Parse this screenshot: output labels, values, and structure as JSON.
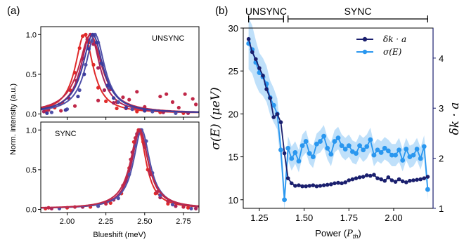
{
  "figure": {
    "left_panel_letter": "(a)",
    "right_panel_letter": "(b)"
  },
  "chart_data": [
    {
      "id": "a-top",
      "type": "scatter",
      "annotation": "UNSYNC",
      "ylabel": "Norm. intensity (a.u.)",
      "xlim": [
        1.83,
        2.85
      ],
      "ylim": [
        -0.04,
        1.1
      ],
      "yticks": [
        "0.0",
        "0.5",
        "1.0"
      ],
      "series": [
        {
          "color": "#e02a2a",
          "center": 2.11,
          "width": 0.07,
          "points": [
            [
              1.86,
              0.04
            ],
            [
              1.92,
              0.08
            ],
            [
              1.97,
              0.14
            ],
            [
              2.02,
              0.3
            ],
            [
              2.05,
              0.52
            ],
            [
              2.08,
              0.83
            ],
            [
              2.1,
              0.98
            ],
            [
              2.12,
              1.0
            ],
            [
              2.14,
              0.9
            ],
            [
              2.17,
              0.62
            ],
            [
              2.2,
              0.33
            ],
            [
              2.25,
              0.16
            ],
            [
              2.32,
              0.07
            ],
            [
              2.45,
              0.03
            ],
            [
              2.6,
              0.02
            ],
            [
              2.75,
              0.01
            ]
          ]
        },
        {
          "color": "#a8245a",
          "center": 2.15,
          "width": 0.075,
          "points": [
            [
              1.85,
              0.03
            ],
            [
              1.95,
              0.12
            ],
            [
              2.01,
              0.2
            ],
            [
              2.06,
              0.42
            ],
            [
              2.1,
              0.7
            ],
            [
              2.13,
              0.94
            ],
            [
              2.15,
              1.0
            ],
            [
              2.17,
              0.88
            ],
            [
              2.2,
              0.58
            ],
            [
              2.24,
              0.3
            ],
            [
              2.3,
              0.14
            ],
            [
              2.38,
              0.07
            ],
            [
              2.5,
              0.04
            ],
            [
              2.62,
              0.02
            ],
            [
              2.78,
              0.01
            ]
          ]
        },
        {
          "color": "#c02848",
          "center": 2.15,
          "width": 0.09,
          "points": [
            [
              1.88,
              0.05
            ],
            [
              1.96,
              0.04
            ],
            [
              2.05,
              0.1
            ],
            [
              2.2,
              0.17
            ],
            [
              2.28,
              0.31
            ],
            [
              2.32,
              0.15
            ],
            [
              2.36,
              0.21
            ],
            [
              2.4,
              0.18
            ],
            [
              2.45,
              0.28
            ],
            [
              2.5,
              0.09
            ],
            [
              2.55,
              0.04
            ],
            [
              2.6,
              0.22
            ],
            [
              2.64,
              0.25
            ],
            [
              2.68,
              0.15
            ],
            [
              2.72,
              0.08
            ],
            [
              2.76,
              0.25
            ],
            [
              2.81,
              0.19
            ],
            [
              2.83,
              0.12
            ]
          ]
        },
        {
          "color": "#5050a8",
          "center": 2.18,
          "width": 0.075,
          "points": [
            [
              1.9,
              0.02
            ],
            [
              2.0,
              0.06
            ],
            [
              2.08,
              0.3
            ],
            [
              2.12,
              0.62
            ],
            [
              2.16,
              0.92
            ],
            [
              2.18,
              1.0
            ],
            [
              2.2,
              0.9
            ],
            [
              2.23,
              0.62
            ],
            [
              2.27,
              0.33
            ],
            [
              2.33,
              0.15
            ],
            [
              2.42,
              0.06
            ],
            [
              2.55,
              0.03
            ],
            [
              2.7,
              0.01
            ]
          ]
        },
        {
          "color": "#3c3c9c",
          "center": 2.165,
          "width": 0.08,
          "points": [
            [
              1.87,
              0.01
            ],
            [
              1.99,
              0.05
            ],
            [
              2.07,
              0.22
            ],
            [
              2.11,
              0.5
            ],
            [
              2.14,
              0.82
            ],
            [
              2.165,
              1.0
            ],
            [
              2.19,
              0.9
            ],
            [
              2.22,
              0.64
            ],
            [
              2.26,
              0.36
            ],
            [
              2.3,
              0.2
            ],
            [
              2.38,
              0.08
            ],
            [
              2.5,
              0.04
            ]
          ]
        }
      ]
    },
    {
      "id": "a-bottom",
      "type": "scatter",
      "annotation": "SYNC",
      "xlabel": "Blueshift (meV)",
      "xlim": [
        1.83,
        2.85
      ],
      "ylim": [
        -0.04,
        1.1
      ],
      "xticks": [
        "2.00",
        "2.25",
        "2.50",
        "2.75"
      ],
      "yticks": [
        "0.0",
        "0.5",
        "1.0"
      ],
      "series": [
        {
          "color": "#e02a2a",
          "center": 2.46,
          "width": 0.06,
          "points": [
            [
              1.86,
              0.01
            ],
            [
              2.0,
              0.02
            ],
            [
              2.15,
              0.03
            ],
            [
              2.28,
              0.08
            ],
            [
              2.35,
              0.2
            ],
            [
              2.4,
              0.52
            ],
            [
              2.43,
              0.85
            ],
            [
              2.46,
              1.0
            ],
            [
              2.49,
              0.85
            ],
            [
              2.52,
              0.5
            ],
            [
              2.57,
              0.2
            ],
            [
              2.65,
              0.07
            ],
            [
              2.78,
              0.02
            ]
          ]
        },
        {
          "color": "#a8245a",
          "center": 2.47,
          "width": 0.065,
          "points": [
            [
              1.9,
              0.01
            ],
            [
              2.1,
              0.03
            ],
            [
              2.3,
              0.12
            ],
            [
              2.38,
              0.36
            ],
            [
              2.42,
              0.72
            ],
            [
              2.45,
              0.95
            ],
            [
              2.47,
              1.0
            ],
            [
              2.5,
              0.82
            ],
            [
              2.54,
              0.44
            ],
            [
              2.6,
              0.15
            ],
            [
              2.7,
              0.04
            ],
            [
              2.83,
              0.01
            ]
          ]
        },
        {
          "color": "#5050a8",
          "center": 2.48,
          "width": 0.065,
          "points": [
            [
              1.95,
              0.01
            ],
            [
              2.2,
              0.04
            ],
            [
              2.33,
              0.14
            ],
            [
              2.4,
              0.44
            ],
            [
              2.44,
              0.8
            ],
            [
              2.48,
              1.0
            ],
            [
              2.51,
              0.86
            ],
            [
              2.55,
              0.46
            ],
            [
              2.6,
              0.18
            ],
            [
              2.68,
              0.06
            ],
            [
              2.8,
              0.01
            ]
          ]
        },
        {
          "color": "#c02848",
          "center": 2.465,
          "width": 0.07,
          "points": [
            [
              1.88,
              0.02
            ],
            [
              2.05,
              0.03
            ],
            [
              2.25,
              0.07
            ],
            [
              2.36,
              0.3
            ],
            [
              2.41,
              0.63
            ],
            [
              2.44,
              0.9
            ],
            [
              2.47,
              0.99
            ],
            [
              2.5,
              0.78
            ],
            [
              2.53,
              0.48
            ],
            [
              2.58,
              0.22
            ],
            [
              2.65,
              0.1
            ],
            [
              2.75,
              0.03
            ]
          ]
        }
      ]
    },
    {
      "id": "b",
      "type": "line",
      "xlabel": "Power (P_th)",
      "ylabel_left": "σ(E)  (μeV)",
      "ylabel_right": "δk · a",
      "xlim": [
        1.16,
        2.22
      ],
      "ylim_left": [
        9,
        30
      ],
      "ylim_right": [
        1,
        4.6
      ],
      "xticks": [
        "1.25",
        "1.50",
        "1.75",
        "2.00"
      ],
      "yticks_left": [
        "10",
        "15",
        "20",
        "25",
        "30"
      ],
      "yticks_right": [
        "1",
        "2",
        "3",
        "4"
      ],
      "regions": [
        {
          "label": "UNSYNC",
          "from": 1.19,
          "to": 1.385
        },
        {
          "label": "SYNC",
          "from": 1.41,
          "to": 2.19
        }
      ],
      "legend": [
        {
          "label": "δk · a",
          "color": "#1a1f6e"
        },
        {
          "label": "σ(E)",
          "color": "#2a97ef"
        }
      ],
      "series": [
        {
          "name": "δk · a",
          "axis": "right",
          "color": "#1a1f6e",
          "x": [
            1.19,
            1.21,
            1.23,
            1.25,
            1.27,
            1.29,
            1.31,
            1.33,
            1.35,
            1.37,
            1.39,
            1.41,
            1.43,
            1.45,
            1.47,
            1.49,
            1.51,
            1.53,
            1.55,
            1.57,
            1.59,
            1.61,
            1.63,
            1.65,
            1.67,
            1.69,
            1.71,
            1.73,
            1.75,
            1.77,
            1.79,
            1.81,
            1.83,
            1.85,
            1.87,
            1.89,
            1.91,
            1.93,
            1.95,
            1.97,
            1.99,
            2.01,
            2.03,
            2.05,
            2.07,
            2.09,
            2.11,
            2.13,
            2.15,
            2.17,
            2.19
          ],
          "y": [
            4.38,
            4.12,
            3.98,
            3.8,
            3.65,
            3.38,
            3.2,
            2.82,
            2.88,
            2.72,
            2.1,
            1.6,
            1.5,
            1.45,
            1.46,
            1.44,
            1.44,
            1.45,
            1.46,
            1.44,
            1.45,
            1.46,
            1.47,
            1.48,
            1.5,
            1.51,
            1.5,
            1.52,
            1.56,
            1.58,
            1.6,
            1.62,
            1.63,
            1.66,
            1.65,
            1.67,
            1.6,
            1.58,
            1.55,
            1.62,
            1.56,
            1.53,
            1.58,
            1.54,
            1.52,
            1.55,
            1.56,
            1.57,
            1.58,
            1.6,
            1.63
          ]
        },
        {
          "name": "σ(E)",
          "axis": "left",
          "color": "#2a97ef",
          "x": [
            1.19,
            1.21,
            1.23,
            1.25,
            1.27,
            1.29,
            1.31,
            1.33,
            1.35,
            1.37,
            1.39,
            1.41,
            1.43,
            1.45,
            1.47,
            1.49,
            1.51,
            1.53,
            1.55,
            1.57,
            1.59,
            1.61,
            1.63,
            1.65,
            1.67,
            1.69,
            1.71,
            1.73,
            1.75,
            1.77,
            1.79,
            1.81,
            1.83,
            1.85,
            1.87,
            1.89,
            1.91,
            1.93,
            1.95,
            1.97,
            1.99,
            2.01,
            2.03,
            2.05,
            2.07,
            2.09,
            2.11,
            2.13,
            2.15,
            2.17,
            2.19
          ],
          "y": [
            28.2,
            27.5,
            26.0,
            24.8,
            24.3,
            23.5,
            21.9,
            21.0,
            20.0,
            15.8,
            10.0,
            16.0,
            14.8,
            15.5,
            14.5,
            16.3,
            16.8,
            15.4,
            15.0,
            16.5,
            16.8,
            17.4,
            16.0,
            15.3,
            16.8,
            17.2,
            16.3,
            15.9,
            16.3,
            15.6,
            15.4,
            16.3,
            15.8,
            16.2,
            17.0,
            15.2,
            15.8,
            15.5,
            16.0,
            15.7,
            15.2,
            15.2,
            15.8,
            14.6,
            15.9,
            15.0,
            15.2,
            15.9,
            14.8,
            16.2,
            11.2
          ],
          "band": [
            3.0,
            2.8,
            2.6,
            2.3,
            2.2,
            2.1,
            2.0,
            2.0,
            1.8,
            1.6,
            1.2,
            1.4,
            1.4,
            1.3,
            1.3,
            1.3,
            1.3,
            1.2,
            1.3,
            1.2,
            1.3,
            1.3,
            1.3,
            1.4,
            1.3,
            1.3,
            1.3,
            1.3,
            1.3,
            1.3,
            1.3,
            1.3,
            1.4,
            1.4,
            1.4,
            1.3,
            1.3,
            1.3,
            1.3,
            1.3,
            1.3,
            1.3,
            1.4,
            1.3,
            1.3,
            1.3,
            1.3,
            1.3,
            1.3,
            1.3,
            1.2
          ]
        }
      ]
    }
  ]
}
